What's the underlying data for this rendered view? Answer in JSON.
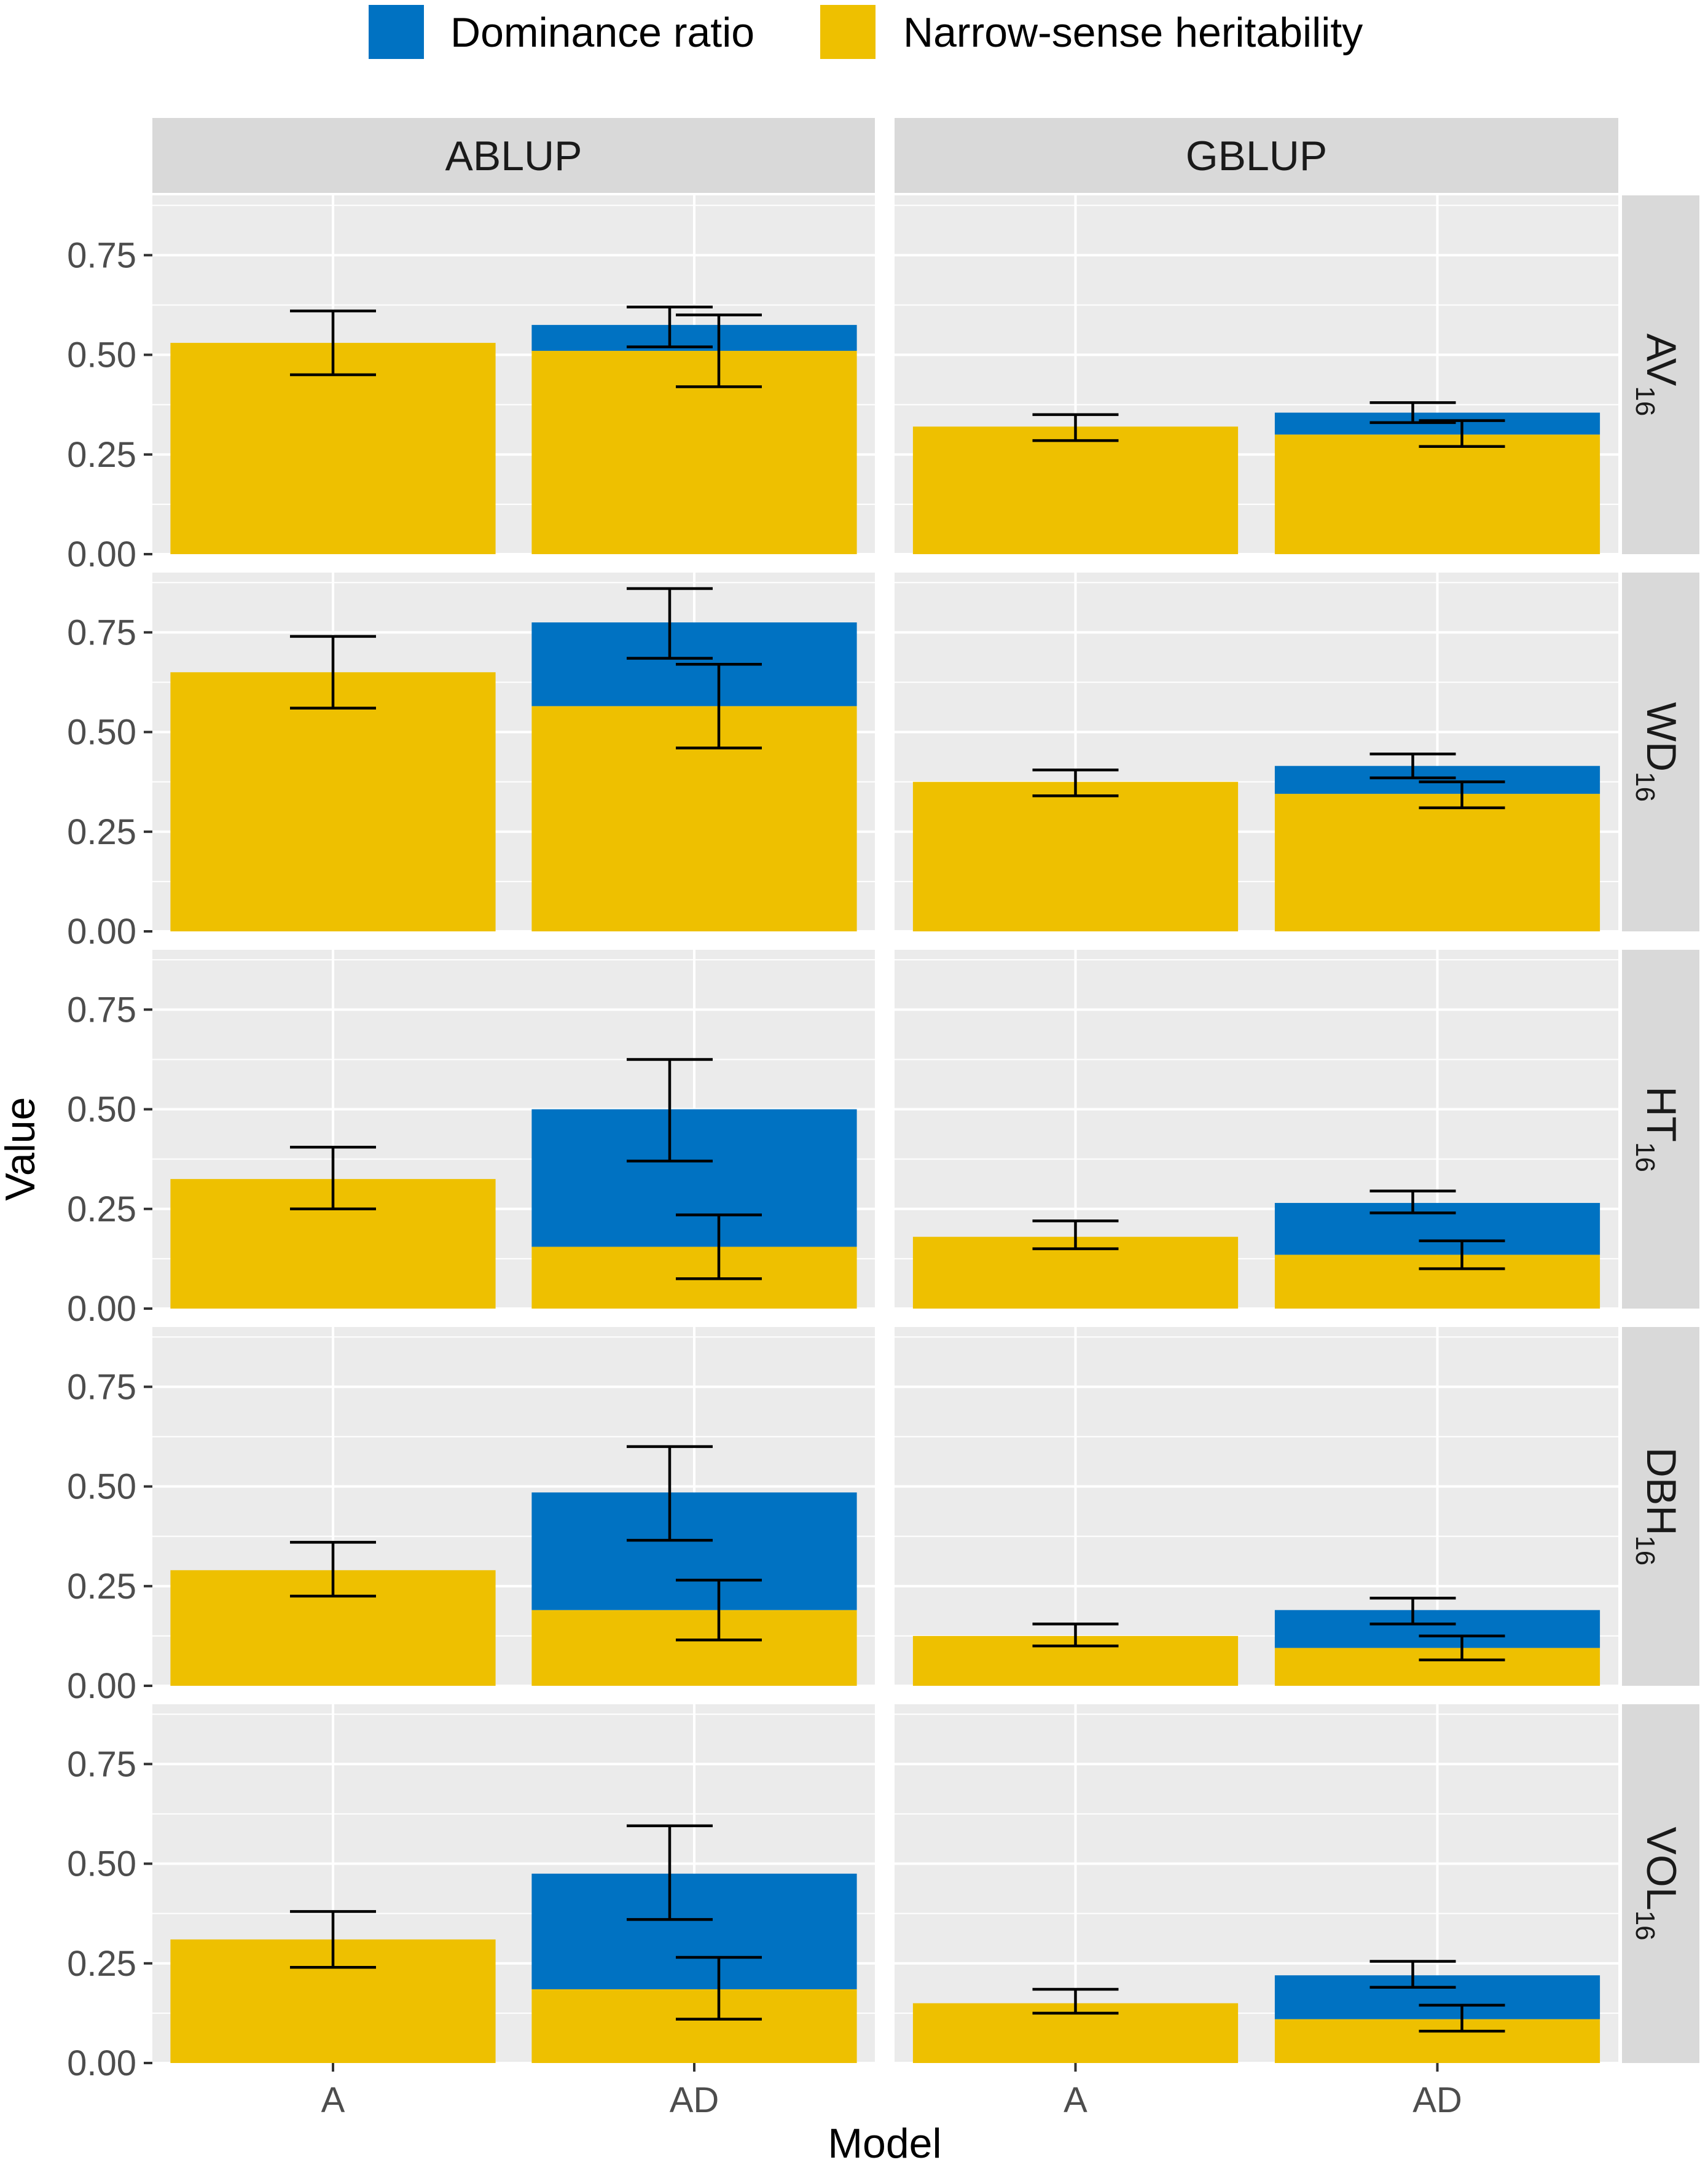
{
  "chart_data": {
    "type": "bar",
    "stacked": true,
    "facet_layout": "grid",
    "columns": [
      "ABLUP",
      "GBLUP"
    ],
    "rows": [
      {
        "base": "AV",
        "sub": "16"
      },
      {
        "base": "WD",
        "sub": "16"
      },
      {
        "base": "HT",
        "sub": "16"
      },
      {
        "base": "DBH",
        "sub": "16"
      },
      {
        "base": "VOL",
        "sub": "16"
      }
    ],
    "categories": [
      "A",
      "AD"
    ],
    "xlabel": "Model",
    "ylabel": "Value",
    "ylim": [
      0,
      0.9
    ],
    "y_ticks": [
      "0.00",
      "0.25",
      "0.50",
      "0.75"
    ],
    "legend": {
      "position": "top",
      "items": [
        {
          "name": "Dominance ratio",
          "color": "#0072c2"
        },
        {
          "name": "Narrow-sense heritability",
          "color": "#eec000"
        }
      ]
    },
    "series_colors": {
      "dominance": "#0072c2",
      "heritability": "#eec000"
    },
    "panels": [
      {
        "row": 0,
        "col": 0,
        "A": {
          "h2": 0.53,
          "h2_err": [
            0.45,
            0.61
          ]
        },
        "AD": {
          "h2": 0.51,
          "d": 0.065,
          "h2_err": [
            0.42,
            0.6
          ],
          "d_err": [
            0.52,
            0.62
          ]
        }
      },
      {
        "row": 0,
        "col": 1,
        "A": {
          "h2": 0.32,
          "h2_err": [
            0.285,
            0.35
          ]
        },
        "AD": {
          "h2": 0.3,
          "d": 0.055,
          "h2_err": [
            0.27,
            0.335
          ],
          "d_err": [
            0.33,
            0.38
          ]
        }
      },
      {
        "row": 1,
        "col": 0,
        "A": {
          "h2": 0.65,
          "h2_err": [
            0.56,
            0.74
          ]
        },
        "AD": {
          "h2": 0.565,
          "d": 0.21,
          "h2_err": [
            0.46,
            0.67
          ],
          "d_err": [
            0.685,
            0.86
          ]
        }
      },
      {
        "row": 1,
        "col": 1,
        "A": {
          "h2": 0.375,
          "h2_err": [
            0.34,
            0.405
          ]
        },
        "AD": {
          "h2": 0.345,
          "d": 0.07,
          "h2_err": [
            0.31,
            0.375
          ],
          "d_err": [
            0.385,
            0.445
          ]
        }
      },
      {
        "row": 2,
        "col": 0,
        "A": {
          "h2": 0.325,
          "h2_err": [
            0.25,
            0.405
          ]
        },
        "AD": {
          "h2": 0.155,
          "d": 0.345,
          "h2_err": [
            0.075,
            0.235
          ],
          "d_err": [
            0.37,
            0.625
          ]
        }
      },
      {
        "row": 2,
        "col": 1,
        "A": {
          "h2": 0.18,
          "h2_err": [
            0.15,
            0.22
          ]
        },
        "AD": {
          "h2": 0.135,
          "d": 0.13,
          "h2_err": [
            0.1,
            0.17
          ],
          "d_err": [
            0.24,
            0.295
          ]
        }
      },
      {
        "row": 3,
        "col": 0,
        "A": {
          "h2": 0.29,
          "h2_err": [
            0.225,
            0.36
          ]
        },
        "AD": {
          "h2": 0.19,
          "d": 0.295,
          "h2_err": [
            0.115,
            0.265
          ],
          "d_err": [
            0.365,
            0.6
          ]
        }
      },
      {
        "row": 3,
        "col": 1,
        "A": {
          "h2": 0.125,
          "h2_err": [
            0.1,
            0.155
          ]
        },
        "AD": {
          "h2": 0.095,
          "d": 0.095,
          "h2_err": [
            0.065,
            0.125
          ],
          "d_err": [
            0.155,
            0.22
          ]
        }
      },
      {
        "row": 4,
        "col": 0,
        "A": {
          "h2": 0.31,
          "h2_err": [
            0.24,
            0.38
          ]
        },
        "AD": {
          "h2": 0.185,
          "d": 0.29,
          "h2_err": [
            0.11,
            0.265
          ],
          "d_err": [
            0.36,
            0.595
          ]
        }
      },
      {
        "row": 4,
        "col": 1,
        "A": {
          "h2": 0.15,
          "h2_err": [
            0.125,
            0.185
          ]
        },
        "AD": {
          "h2": 0.11,
          "d": 0.11,
          "h2_err": [
            0.08,
            0.145
          ],
          "d_err": [
            0.19,
            0.255
          ]
        }
      }
    ]
  }
}
